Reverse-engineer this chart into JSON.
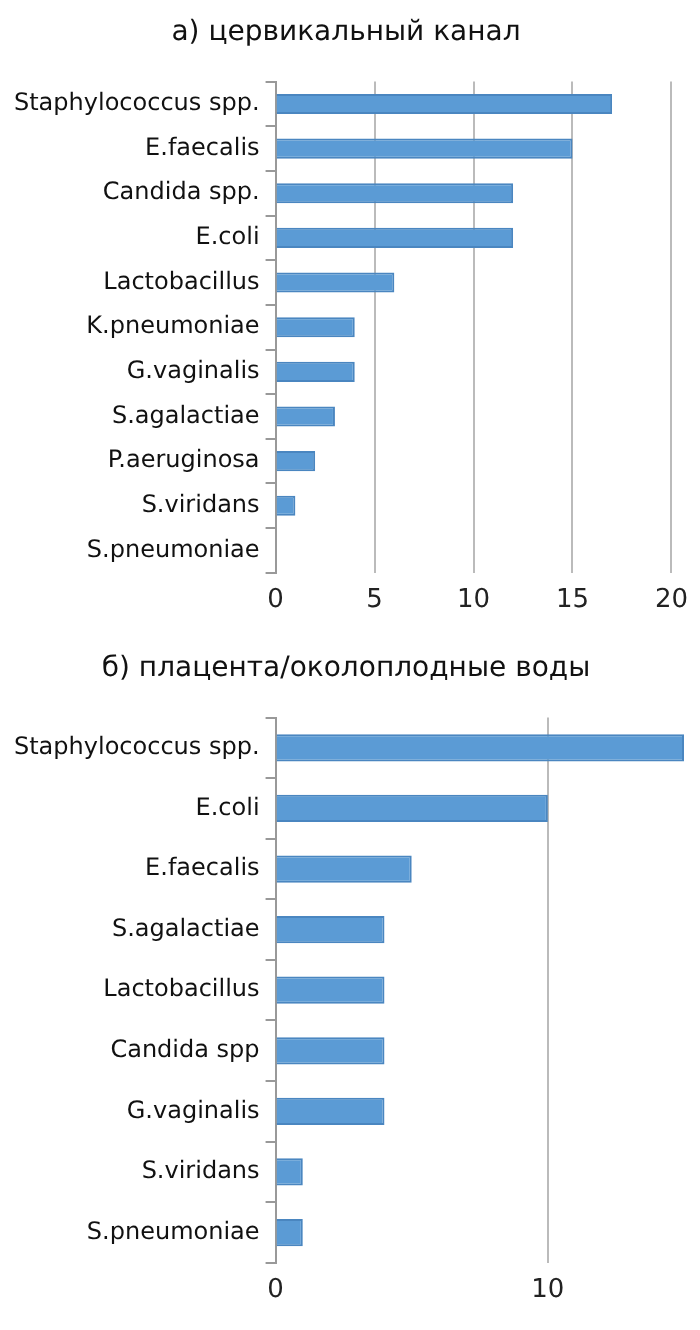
{
  "chart_data": [
    {
      "type": "bar",
      "orientation": "horizontal",
      "title": "а) цервикальный канал",
      "categories": [
        "Staphylococcus spp.",
        "E.faecalis",
        "Candida spp.",
        "E.coli",
        "Lactobacillus",
        "K.pneumoniae",
        "G.vaginalis",
        "S.agalactiae",
        "P.aeruginosa",
        "S.viridans",
        "S.pneumoniae"
      ],
      "values": [
        17,
        15,
        12,
        12,
        6,
        4,
        4,
        3,
        2,
        1,
        0
      ],
      "color": "#5b9bd5",
      "xlim": [
        0,
        20
      ],
      "xticks": [
        0,
        5,
        10,
        15,
        20
      ],
      "grid": "x"
    },
    {
      "type": "bar",
      "orientation": "horizontal",
      "title": "б) плацента/околоплодные воды",
      "categories": [
        "Staphylococcus spp.",
        "E.coli",
        "E.faecalis",
        "S.agalactiae",
        "Lactobacillus",
        "Candida spp",
        "G.vaginalis",
        "S.viridans",
        "S.pneumoniae"
      ],
      "values": [
        15,
        10,
        5,
        4,
        4,
        4,
        4,
        1,
        1
      ],
      "color": "#5b9bd5",
      "xlim": [
        0,
        15
      ],
      "xticks": [
        0,
        10
      ],
      "grid": "x"
    }
  ]
}
